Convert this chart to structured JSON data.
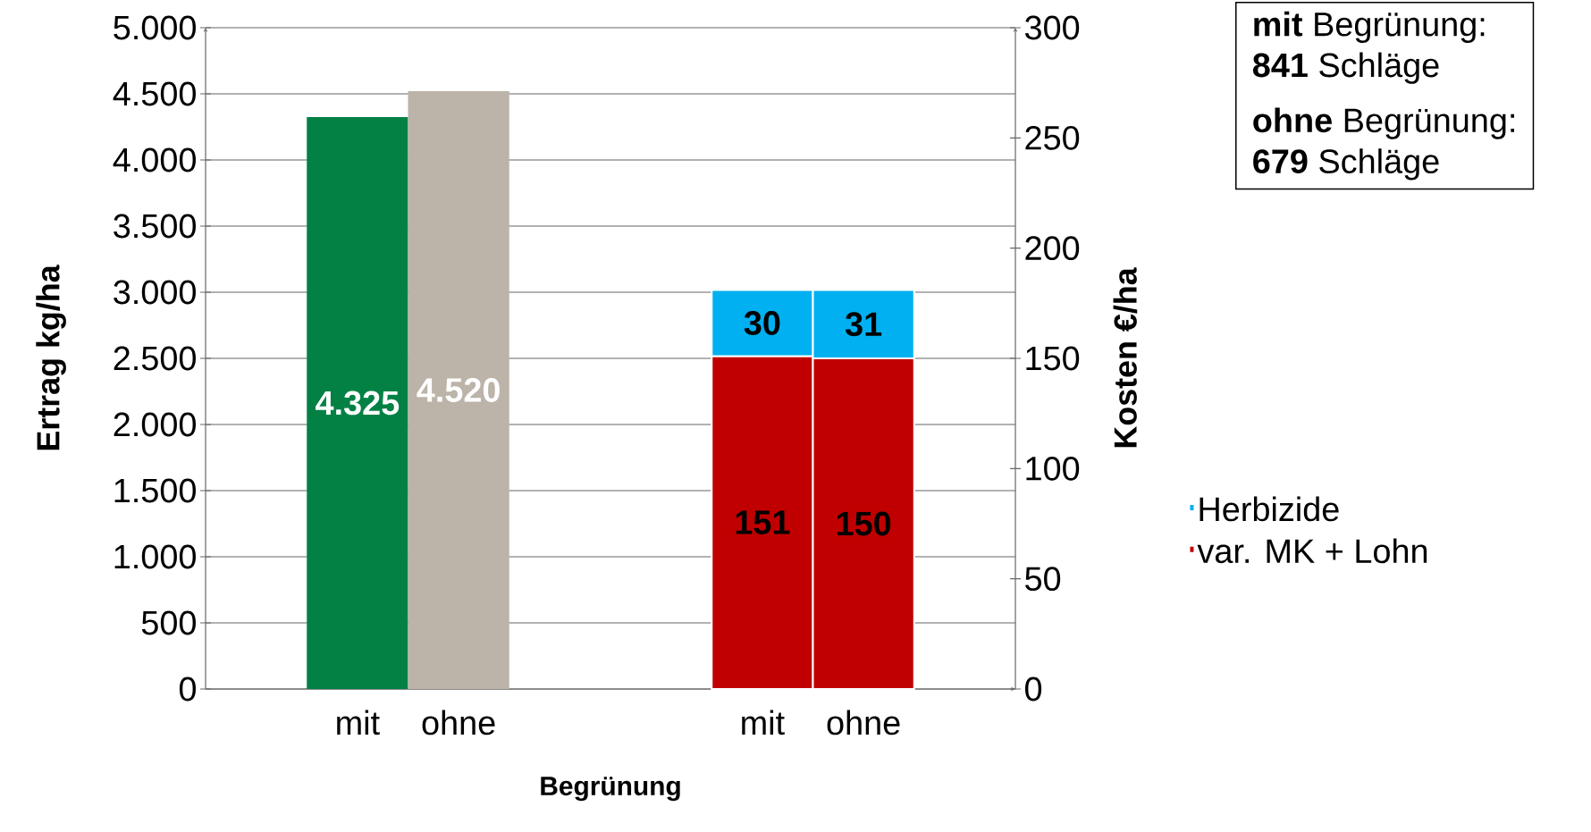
{
  "chart_data": {
    "type": "bar",
    "xlabel": "Begrünung",
    "ylabel": "Ertrag kg/ha",
    "y2label": "Kosten €/ha",
    "categories": [
      null,
      "mit",
      "ohne",
      null,
      null,
      "mit",
      "ohne",
      null
    ],
    "series": [
      {
        "values": [
          null,
          4325,
          4520,
          null,
          null,
          null,
          null,
          null
        ],
        "colors": [
          null,
          "#038145",
          "#bcb3a9",
          null,
          null,
          null,
          null,
          null
        ],
        "value_labels": [
          null,
          "4.325",
          "4.520",
          null,
          null,
          null,
          null,
          null
        ]
      },
      {
        "name": "var. MK + Lohn",
        "axis": "y2",
        "color": "#c00000",
        "values": [
          null,
          null,
          null,
          null,
          null,
          151,
          150,
          null
        ],
        "value_labels": [
          null,
          null,
          null,
          null,
          null,
          "151",
          "150",
          null
        ]
      },
      {
        "name": "Herbizide",
        "axis": "y2",
        "color": "#00b0f0",
        "values": [
          null,
          null,
          null,
          null,
          null,
          30,
          31,
          null
        ],
        "value_labels": [
          null,
          null,
          null,
          null,
          null,
          "30",
          "31",
          null
        ]
      }
    ],
    "stacked": true,
    "ylim": [
      0,
      5000
    ],
    "yticks": [
      {
        "value": 0,
        "label": "0"
      },
      {
        "value": 500,
        "label": "500"
      },
      {
        "value": 1000,
        "label": "1.000"
      },
      {
        "value": 1500,
        "label": "1.500"
      },
      {
        "value": 2000,
        "label": "2.000"
      },
      {
        "value": 2500,
        "label": "2.500"
      },
      {
        "value": 3000,
        "label": "3.000"
      },
      {
        "value": 3500,
        "label": "3.500"
      },
      {
        "value": 4000,
        "label": "4.000"
      },
      {
        "value": 4500,
        "label": "4.500"
      },
      {
        "value": 5000,
        "label": "5.000"
      }
    ],
    "y2lim": [
      0,
      300
    ],
    "y2ticks": [
      0,
      50,
      100,
      150,
      200,
      250,
      300
    ],
    "grid": "y",
    "legend": "right",
    "annotations": [
      "**mit** Begrünung:",
      "**841** Schläge",
      "**ohne** Begrünung:",
      "**679** Schläge"
    ]
  }
}
